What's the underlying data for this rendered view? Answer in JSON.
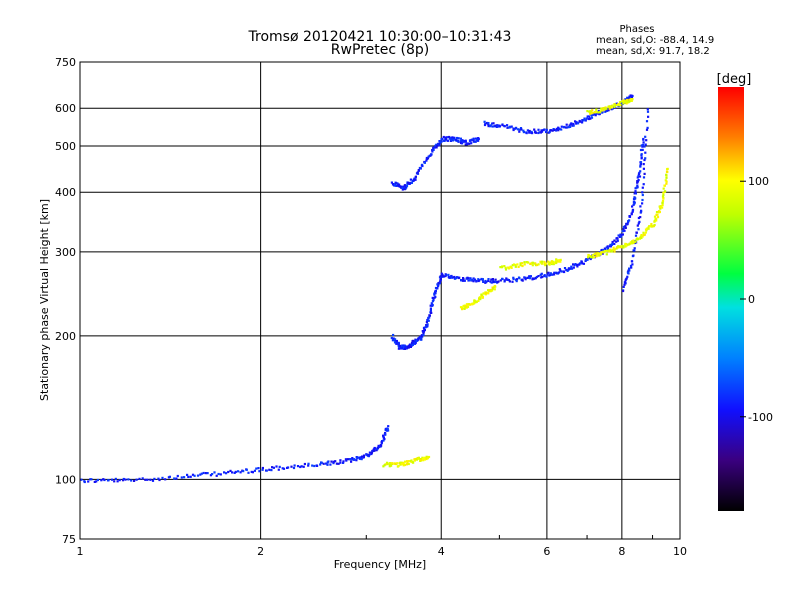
{
  "chart_data": {
    "type": "scatter",
    "title": "Tromsø 20120421 10:30:00–10:31:43",
    "subtitle": "RwPretec (8p)",
    "xlabel": "Frequency [MHz]",
    "ylabel": "Stationary phase Virtual Height [km]",
    "x_scale": "log",
    "y_scale": "log",
    "xlim": [
      1,
      10
    ],
    "ylim": [
      75,
      750
    ],
    "x_ticks": [
      1,
      2,
      4,
      6,
      8,
      10
    ],
    "x_tick_labels": [
      "1",
      "2",
      "4",
      "6",
      "8",
      "10"
    ],
    "y_ticks": [
      75,
      100,
      200,
      300,
      400,
      500,
      600,
      750
    ],
    "y_tick_labels": [
      "75",
      "100",
      "200",
      "300",
      "400",
      "500",
      "600",
      "750"
    ],
    "grid": true,
    "color_encoding": "phase [deg]",
    "phases_info": {
      "title": "Phases",
      "line1": "mean, sd,O: -88.4, 14.9",
      "line2": "mean, sd,X: 91.7, 18.2"
    },
    "colorbar": {
      "unit": "[deg]",
      "range": [
        -180,
        180
      ],
      "ticks": [
        -100,
        0,
        100
      ],
      "tick_labels": [
        "-100",
        "0",
        "100"
      ]
    },
    "series": [
      {
        "label_ref": "O",
        "phase_mean": -88.4,
        "phase_sd": 14.9,
        "traces": [
          {
            "x": [
              1.0,
              1.2,
              1.5,
              1.8,
              2.1,
              2.5,
              2.8,
              3.0,
              3.15,
              3.25
            ],
            "y": [
              100,
              100,
              102,
              104,
              106,
              108,
              110,
              113,
              118,
              130
            ]
          },
          {
            "x": [
              3.3,
              3.4,
              3.5,
              3.6,
              3.7,
              3.8,
              3.9,
              4.0
            ],
            "y": [
              200,
              190,
              190,
              195,
              200,
              220,
              250,
              270
            ]
          },
          {
            "x": [
              4.0,
              4.3,
              4.6,
              5.0,
              5.5,
              6.0,
              6.5,
              7.0,
              7.5,
              8.0,
              8.3,
              8.5,
              8.65
            ],
            "y": [
              270,
              265,
              262,
              262,
              265,
              270,
              278,
              290,
              305,
              330,
              370,
              430,
              520
            ]
          },
          {
            "x": [
              3.3,
              3.45,
              3.6,
              3.8,
              4.0,
              4.2,
              4.4,
              4.6
            ],
            "y": [
              420,
              410,
              430,
              480,
              520,
              520,
              510,
              520
            ]
          },
          {
            "x": [
              4.7,
              5.0,
              5.5,
              6.0,
              6.5,
              7.0,
              7.5,
              8.0,
              8.3
            ],
            "y": [
              560,
              555,
              540,
              540,
              555,
              575,
              600,
              620,
              640
            ]
          },
          {
            "x": [
              8.0,
              8.3,
              8.6,
              8.8
            ],
            "y": [
              250,
              290,
              380,
              600
            ]
          }
        ]
      },
      {
        "label_ref": "X",
        "phase_mean": 91.7,
        "phase_sd": 18.2,
        "traces": [
          {
            "x": [
              3.2,
              3.4,
              3.6,
              3.8
            ],
            "y": [
              108,
              108,
              110,
              112
            ]
          },
          {
            "x": [
              4.3,
              4.5,
              4.7,
              4.9
            ],
            "y": [
              230,
              235,
              245,
              255
            ]
          },
          {
            "x": [
              5.0,
              5.5,
              6.0,
              6.3
            ],
            "y": [
              278,
              285,
              285,
              290
            ]
          },
          {
            "x": [
              7.0,
              7.5,
              8.0,
              8.5,
              9.0,
              9.3,
              9.5
            ],
            "y": [
              295,
              300,
              310,
              320,
              345,
              380,
              450
            ]
          },
          {
            "x": [
              7.0,
              7.5,
              8.0,
              8.3
            ],
            "y": [
              590,
              600,
              620,
              630
            ]
          }
        ]
      }
    ]
  }
}
